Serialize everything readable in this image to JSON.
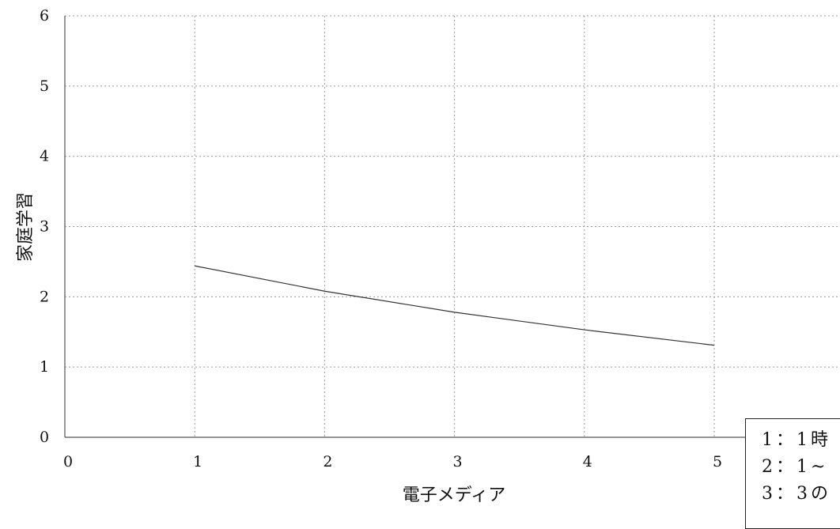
{
  "chart_data": {
    "type": "line",
    "title": "",
    "xlabel": "電子メディア",
    "ylabel": "家庭学習",
    "xlim": [
      0,
      5
    ],
    "ylim": [
      0,
      6
    ],
    "x_ticks": [
      "0",
      "1",
      "2",
      "3",
      "4",
      "5"
    ],
    "y_ticks": [
      "0",
      "1",
      "2",
      "3",
      "4",
      "5",
      "6"
    ],
    "grid": true,
    "legend_position": "bottom-right",
    "series": [
      {
        "x": [
          1,
          2,
          3,
          4,
          5
        ],
        "values": [
          2.44,
          2.08,
          1.78,
          1.53,
          1.31
        ]
      }
    ]
  },
  "legend": {
    "items": [
      "1：1時",
      "2：1~",
      "3：3の"
    ]
  },
  "colors": {
    "line": "#333333",
    "grid": "#9a9a9a",
    "axis": "#555555",
    "background": "#ffffff"
  }
}
